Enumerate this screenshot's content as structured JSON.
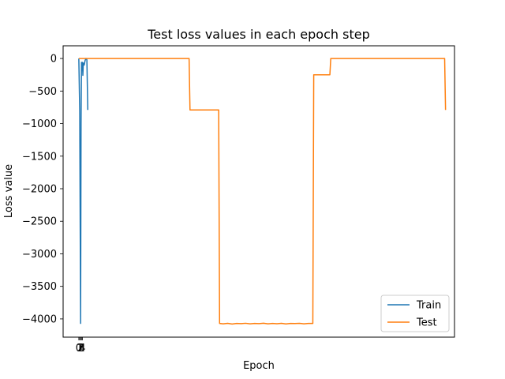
{
  "chart_data": {
    "type": "line",
    "title": "Test loss values in each epoch step",
    "xlabel": "Epoch",
    "ylabel": "Loss value",
    "xlim": [
      -17.5,
      419
    ],
    "ylim": [
      -4280,
      195
    ],
    "x_ticks": [
      0,
      1,
      2,
      3,
      4
    ],
    "y_ticks": [
      0,
      -500,
      -1000,
      -1500,
      -2000,
      -2500,
      -3000,
      -3500,
      -4000
    ],
    "grid": false,
    "legend": {
      "placement": "lower-right"
    },
    "series": [
      {
        "name": "Train",
        "color": "#1f77b4",
        "x": [
          0,
          1,
          2,
          2.5,
          3,
          3.5,
          4,
          4.5,
          5,
          6,
          7,
          8,
          9,
          10
        ],
        "y": [
          0,
          -800,
          -4070,
          -1000,
          -60,
          -180,
          -60,
          -260,
          -70,
          -100,
          -30,
          0,
          -20,
          -790
        ]
      },
      {
        "name": "Test",
        "color": "#ff7f0e",
        "x": [
          0,
          123,
          124,
          156,
          157,
          161,
          166,
          171,
          176,
          181,
          186,
          191,
          196,
          201,
          206,
          211,
          216,
          221,
          226,
          231,
          236,
          241,
          246,
          251,
          256,
          261,
          262,
          280,
          281,
          408,
          409
        ],
        "y": [
          0,
          0,
          -790,
          -790,
          -4070,
          -4075,
          -4068,
          -4078,
          -4070,
          -4073,
          -4067,
          -4076,
          -4070,
          -4072,
          -4066,
          -4075,
          -4069,
          -4074,
          -4068,
          -4077,
          -4070,
          -4071,
          -4068,
          -4075,
          -4070,
          -4070,
          -250,
          -250,
          0,
          0,
          -790
        ]
      }
    ]
  }
}
